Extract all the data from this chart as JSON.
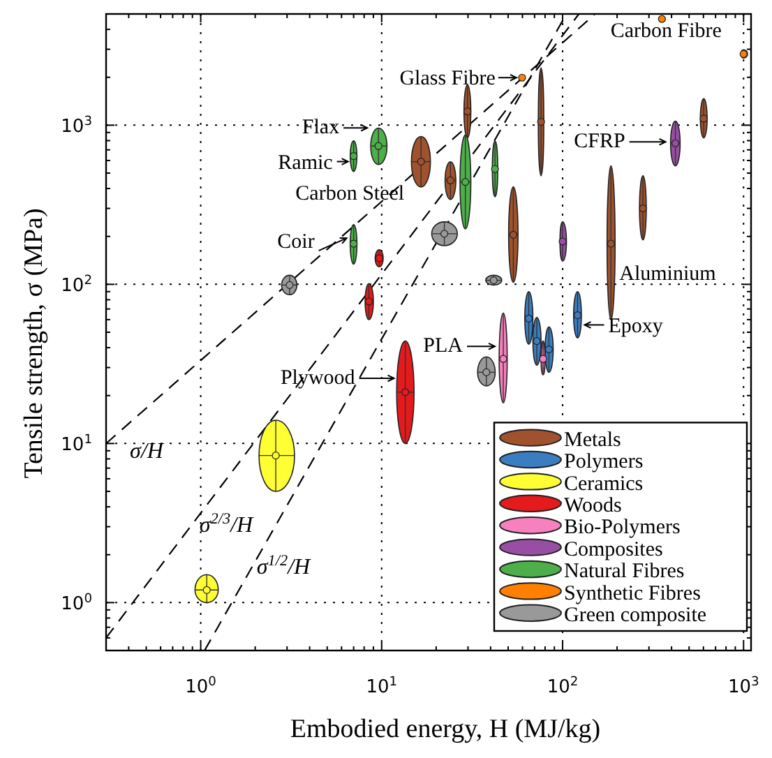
{
  "chart_data": {
    "type": "scatter",
    "xlabel": "Embodied energy, H  (MJ/kg)",
    "ylabel": "Tensile strength, σ (MPa)",
    "log": "xy",
    "grid": true,
    "marker": "circle",
    "legend": "bottom right",
    "xlim": [
      0.3,
      1100
    ],
    "ylim": [
      0.5,
      5000
    ],
    "xticks": [
      {
        "value": 0.3,
        "label": null
      },
      {
        "value": 0.4,
        "label": null
      },
      {
        "value": 0.5,
        "label": null
      },
      {
        "value": 0.6,
        "label": null
      },
      {
        "value": 0.7,
        "label": null
      },
      {
        "value": 0.8,
        "label": null
      },
      {
        "value": 0.9,
        "label": null
      },
      {
        "value": 1,
        "label": "10$^{0}$"
      },
      {
        "value": 2,
        "label": null
      },
      {
        "value": 3,
        "label": null
      },
      {
        "value": 4,
        "label": null
      },
      {
        "value": 5,
        "label": null
      },
      {
        "value": 6,
        "label": null
      },
      {
        "value": 7,
        "label": null
      },
      {
        "value": 8,
        "label": null
      },
      {
        "value": 9,
        "label": null
      },
      {
        "value": 10,
        "label": "10$^{1}$"
      },
      {
        "value": 20,
        "label": null
      },
      {
        "value": 30,
        "label": null
      },
      {
        "value": 40,
        "label": null
      },
      {
        "value": 50,
        "label": null
      },
      {
        "value": 60,
        "label": null
      },
      {
        "value": 70,
        "label": null
      },
      {
        "value": 80,
        "label": null
      },
      {
        "value": 90,
        "label": null
      },
      {
        "value": 100,
        "label": "10$^{2}$"
      },
      {
        "value": 200,
        "label": null
      },
      {
        "value": 300,
        "label": null
      },
      {
        "value": 400,
        "label": null
      },
      {
        "value": 500,
        "label": null
      },
      {
        "value": 600,
        "label": null
      },
      {
        "value": 700,
        "label": null
      },
      {
        "value": 800,
        "label": null
      },
      {
        "value": 900,
        "label": null
      },
      {
        "value": 1000,
        "label": "10$^{3}$"
      }
    ],
    "yticks": [
      {
        "value": 0.5,
        "label": null
      },
      {
        "value": 0.6,
        "label": null
      },
      {
        "value": 0.7,
        "label": null
      },
      {
        "value": 0.8,
        "label": null
      },
      {
        "value": 0.9,
        "label": null
      },
      {
        "value": 1,
        "label": "10$^{0}$"
      },
      {
        "value": 2,
        "label": null
      },
      {
        "value": 3,
        "label": null
      },
      {
        "value": 4,
        "label": null
      },
      {
        "value": 5,
        "label": null
      },
      {
        "value": 6,
        "label": null
      },
      {
        "value": 7,
        "label": null
      },
      {
        "value": 8,
        "label": null
      },
      {
        "value": 9,
        "label": null
      },
      {
        "value": 10,
        "label": "10$^{1}$"
      },
      {
        "value": 20,
        "label": null
      },
      {
        "value": 30,
        "label": null
      },
      {
        "value": 40,
        "label": null
      },
      {
        "value": 50,
        "label": null
      },
      {
        "value": 60,
        "label": null
      },
      {
        "value": 70,
        "label": null
      },
      {
        "value": 80,
        "label": null
      },
      {
        "value": 90,
        "label": null
      },
      {
        "value": 100,
        "label": "10$^{2}$"
      },
      {
        "value": 200,
        "label": null
      },
      {
        "value": 300,
        "label": null
      },
      {
        "value": 400,
        "label": null
      },
      {
        "value": 500,
        "label": null
      },
      {
        "value": 600,
        "label": null
      },
      {
        "value": 700,
        "label": null
      },
      {
        "value": 800,
        "label": null
      },
      {
        "value": 900,
        "label": null
      },
      {
        "value": 1000,
        "label": "10$^{3}$"
      },
      {
        "value": 2000,
        "label": null
      },
      {
        "value": 3000,
        "label": null
      },
      {
        "value": 4000,
        "label": null
      },
      {
        "value": 5000,
        "label": null
      }
    ],
    "series": [
      {
        "type": "line",
        "color": "#000000",
        "line_style": "dashed",
        "marker": "none",
        "x": [
          0.3,
          150
        ],
        "values": [
          10,
          4950
        ]
      },
      {
        "type": "line",
        "color": "#000000",
        "line_style": "dashed",
        "marker": "none",
        "x": [
          0.3,
          123
        ],
        "values": [
          0.6,
          5000
        ]
      },
      {
        "type": "line",
        "color": "#000000",
        "line_style": "dashed",
        "marker": "none",
        "x": [
          1.05,
          105
        ],
        "values": [
          0.5,
          5000
        ]
      },
      {
        "name": "Metals",
        "color": "#a0522d",
        "x": [
          16.5,
          24,
          29.8,
          76,
          53.4,
          185,
          278,
          602
        ],
        "values": [
          590,
          450,
          1220,
          1050,
          205,
          180,
          300,
          1100
        ],
        "xerrors": [
          [
            14.6,
            18.6
          ],
          [
            22.4,
            25.7
          ],
          [
            28.5,
            31.1
          ],
          [
            73.4,
            78.7
          ],
          [
            50.3,
            56.7
          ],
          [
            176,
            195
          ],
          [
            266,
            290
          ],
          [
            577,
            629
          ]
        ],
        "errors": [
          [
            409,
            849
          ],
          [
            341,
            589
          ],
          [
            832,
            1795
          ],
          [
            481,
            2290
          ],
          [
            103,
            409
          ],
          [
            60,
            555
          ],
          [
            190,
            481
          ],
          [
            832,
            1467
          ]
        ]
      },
      {
        "name": "Polymers",
        "color": "#3a7dc0",
        "x": [
          65,
          72,
          84,
          121
        ],
        "values": [
          61,
          44,
          39,
          64
        ],
        "xerrors": [
          [
            61.8,
            68.5
          ],
          [
            68.5,
            76
          ],
          [
            80,
            88.7
          ],
          [
            115,
            127
          ]
        ],
        "errors": [
          [
            42,
            90
          ],
          [
            31,
            62
          ],
          [
            28,
            54
          ],
          [
            46,
            90
          ]
        ]
      },
      {
        "name": "Ceramics",
        "color": "#ffff33",
        "x": [
          2.6,
          1.08
        ],
        "values": [
          8.4,
          1.2
        ],
        "xerrors": [
          [
            2.1,
            3.3
          ],
          [
            0.93,
            1.25
          ]
        ],
        "errors": [
          [
            5,
            14
          ],
          [
            1,
            1.5
          ]
        ]
      },
      {
        "name": "Woods",
        "color": "#e41a1c",
        "x": [
          9.7,
          8.5,
          13.5
        ],
        "values": [
          146,
          78,
          21
        ],
        "xerrors": [
          [
            9.2,
            10.2
          ],
          [
            8.1,
            9
          ],
          [
            12.1,
            15.1
          ]
        ],
        "errors": [
          [
            129,
            165
          ],
          [
            60,
            101
          ],
          [
            10,
            44
          ]
        ]
      },
      {
        "name": "Bio-Polymers",
        "color": "#f781bf",
        "x": [
          47,
          78
        ],
        "values": [
          34,
          34
        ],
        "xerrors": [
          [
            44.6,
            49.4
          ],
          [
            76,
            80
          ]
        ],
        "errors": [
          [
            18,
            66
          ],
          [
            27,
            44
          ]
        ]
      },
      {
        "name": "Composites",
        "color": "#984ea3",
        "x": [
          420,
          100
        ],
        "values": [
          770,
          186
        ],
        "xerrors": [
          [
            395,
            446
          ],
          [
            96.7,
            105
          ]
        ],
        "errors": [
          [
            555,
            1060
          ],
          [
            140,
            247
          ]
        ]
      },
      {
        "name": "Natural Fibres",
        "color": "#4daf4a",
        "x": [
          7,
          9.6,
          7,
          29,
          42.3
        ],
        "values": [
          640,
          740,
          180,
          440,
          530
        ],
        "xerrors": [
          [
            6.7,
            7.3
          ],
          [
            8.7,
            10.7
          ],
          [
            6.7,
            7.3
          ],
          [
            27.1,
            31.1
          ],
          [
            40.9,
            43.8
          ]
        ],
        "errors": [
          [
            512,
            798
          ],
          [
            566,
            959
          ],
          [
            134,
            237
          ],
          [
            223,
            866
          ],
          [
            355,
            798
          ]
        ]
      },
      {
        "name": "Synthetic Fibres",
        "color": "#ff7f00",
        "x": [
          59.7,
          354,
          1000
        ],
        "values": [
          1990,
          4650,
          2800
        ],
        "xerrors": [
          [
            57.7,
            61.8
          ],
          [
            339,
            369
          ],
          [
            966,
            1052
          ]
        ],
        "errors": [
          [
            1910,
            2070
          ],
          [
            4470,
            4840
          ],
          [
            2640,
            2980
          ]
        ]
      },
      {
        "name": "Green composite",
        "color": "#999999",
        "x": [
          3.1,
          22.2,
          37.9,
          41.6
        ],
        "values": [
          99,
          208,
          28,
          106
        ],
        "xerrors": [
          [
            2.8,
            3.4
          ],
          [
            18.9,
            26.2
          ],
          [
            33.9,
            42.4
          ],
          [
            37.6,
            46.1
          ]
        ],
        "errors": [
          [
            86,
            114
          ],
          [
            175,
            247
          ],
          [
            23,
            35
          ],
          [
            99,
            114
          ]
        ]
      }
    ],
    "annotations": [
      {
        "text": "Carbon Fibre",
        "x": 354,
        "y": 4650
      },
      {
        "text": "Glass Fibre",
        "x": 59.7,
        "y": 1990
      },
      {
        "text": "Flax",
        "x": 9.6,
        "y": 740
      },
      {
        "text": "Ramic",
        "x": 7,
        "y": 640
      },
      {
        "text": "Carbon Steel",
        "x": 16.5,
        "y": 590
      },
      {
        "text": "Coir",
        "x": 7,
        "y": 180
      },
      {
        "text": "CFRP",
        "x": 420,
        "y": 770
      },
      {
        "text": "Aluminium",
        "x": 185,
        "y": 180
      },
      {
        "text": "Epoxy",
        "x": 121,
        "y": 64
      },
      {
        "text": "PLA",
        "x": 47,
        "y": 34
      },
      {
        "text": "Plywood",
        "x": 13.5,
        "y": 21
      },
      "σ/H",
      "σ$^{2/3}$/H",
      "σ$^{1/2}$/H"
    ]
  }
}
